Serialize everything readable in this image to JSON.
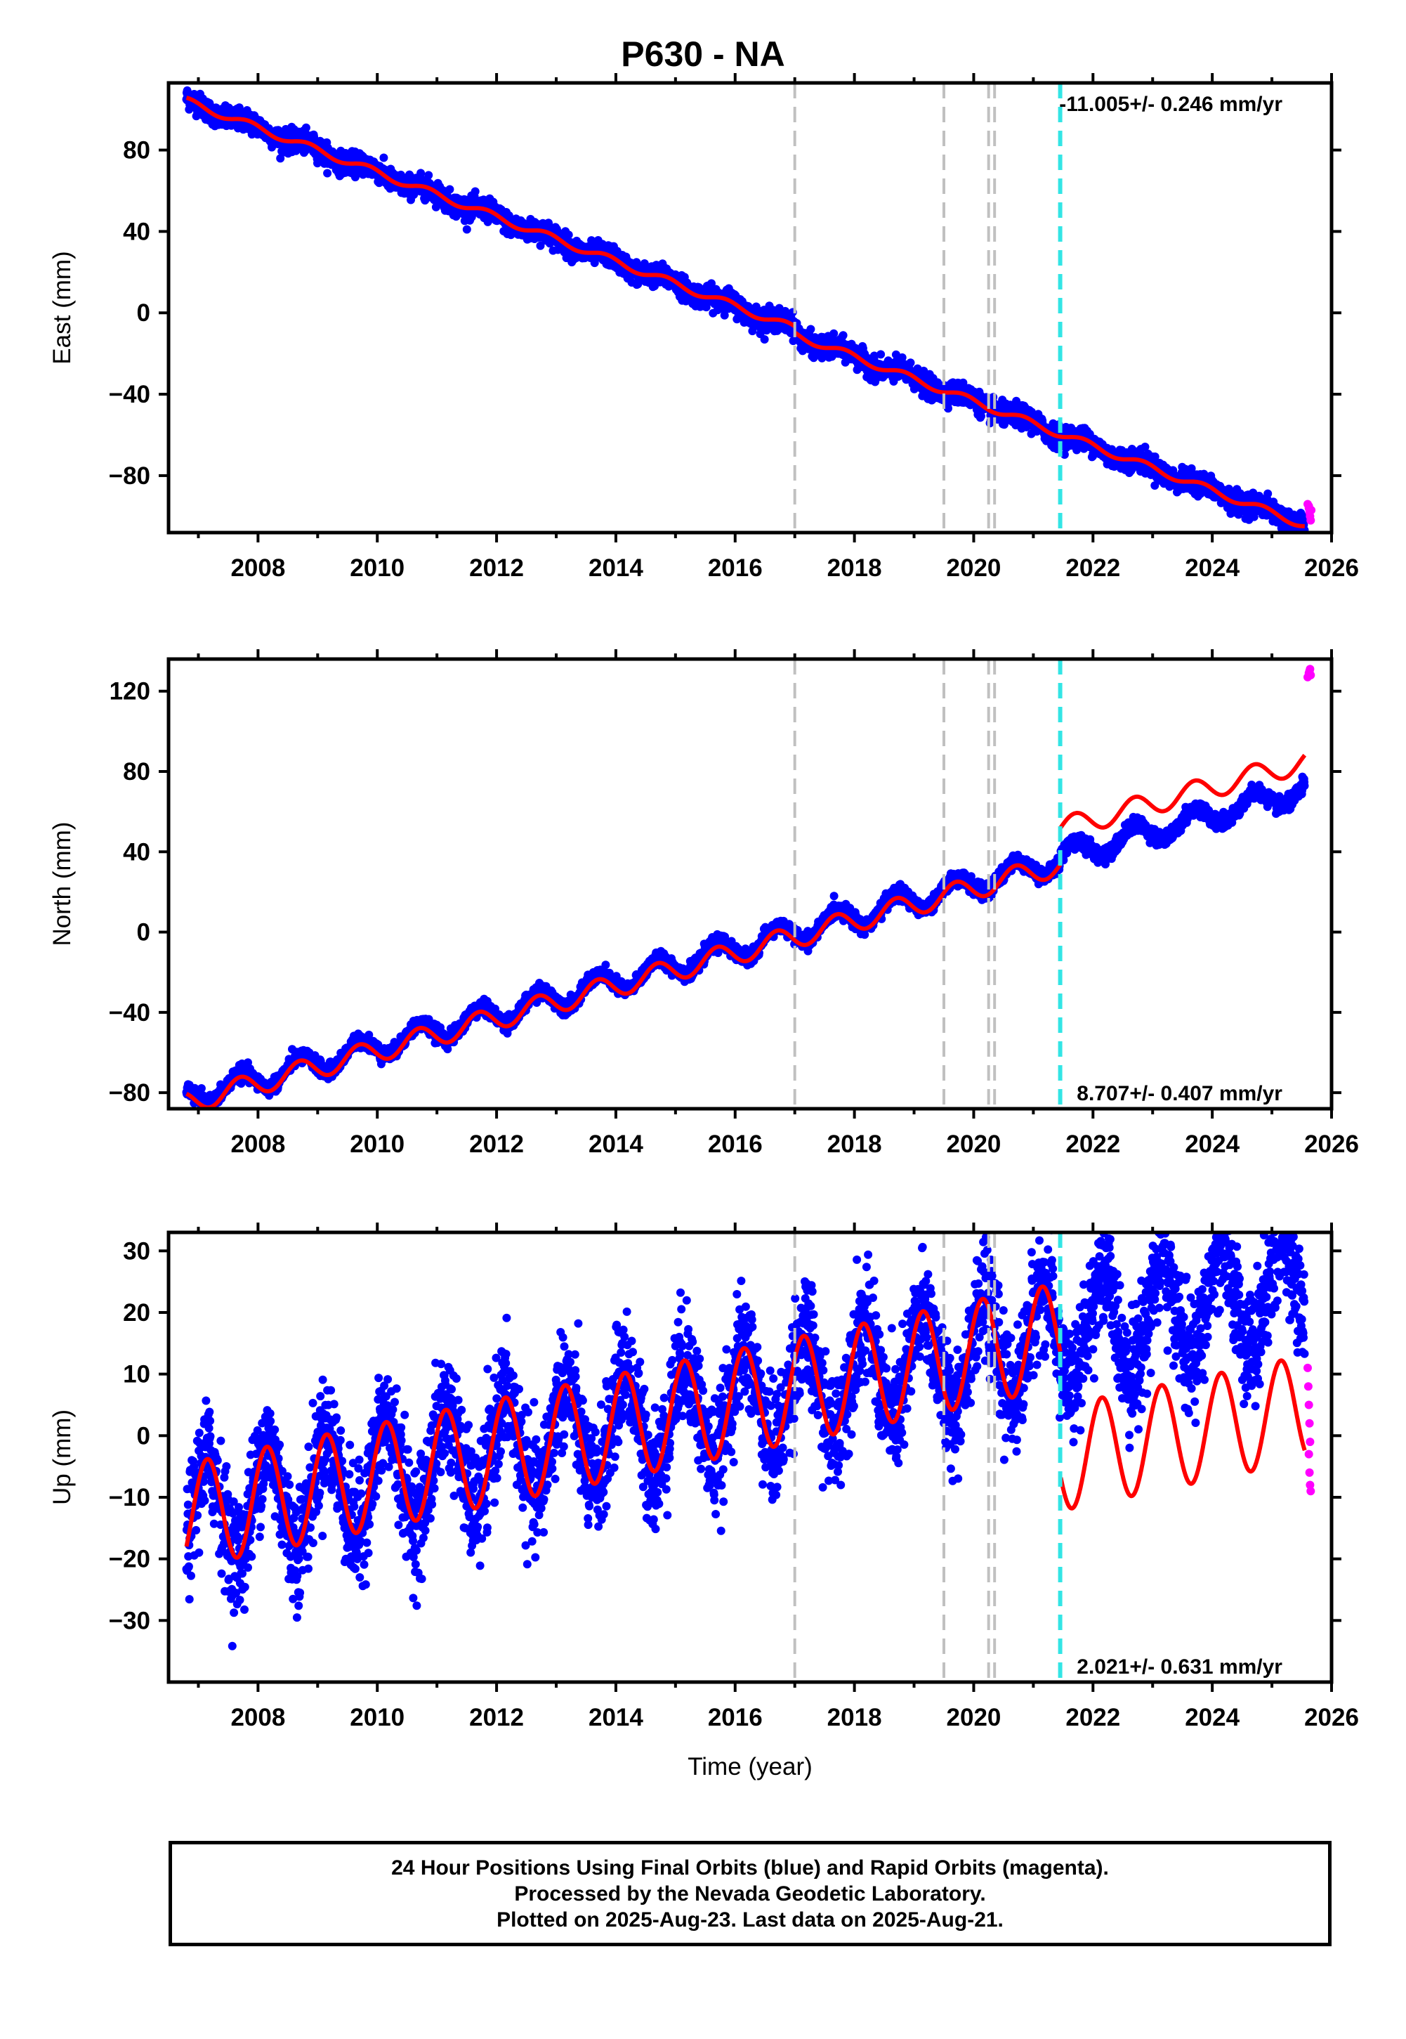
{
  "title": "P630 - NA",
  "colors": {
    "final_orbits": "#0000ff",
    "rapid_orbits": "#ff00ff",
    "model": "#ff0000",
    "event_gray": "#c0c0c0",
    "event_cyan": "#33e5e5"
  },
  "chart_data": [
    {
      "type": "scatter",
      "panel": "east",
      "ylabel": "East (mm)",
      "xlabel": "",
      "xlim": [
        2006.5,
        2026.0
      ],
      "ylim": [
        -108,
        113
      ],
      "yticks": [
        -80,
        -40,
        0,
        40,
        80
      ],
      "xticks": [
        2008,
        2010,
        2012,
        2014,
        2016,
        2018,
        2020,
        2022,
        2024,
        2026
      ],
      "rate_label": "-11.005+/- 0.246 mm/yr",
      "rate_position": "top-right",
      "grid": false,
      "event_lines": [
        {
          "x": 2017.0,
          "color": "gray"
        },
        {
          "x": 2019.5,
          "color": "gray"
        },
        {
          "x": 2020.25,
          "color": "gray"
        },
        {
          "x": 2020.35,
          "color": "gray"
        },
        {
          "x": 2021.45,
          "color": "cyan"
        }
      ],
      "series_params": {
        "start": 2006.8,
        "end": 2025.55,
        "offset": 104,
        "rate": -10.95,
        "annual_amp": 1.8,
        "annual_phase": 0.4,
        "steps": [
          {
            "t": 2017.0,
            "dy": -3.0
          }
        ],
        "noise": 2.6,
        "model_offset": 0
      },
      "rapid_points": [
        {
          "x": 2025.6,
          "y": -94
        },
        {
          "x": 2025.62,
          "y": -96
        },
        {
          "x": 2025.63,
          "y": -98
        },
        {
          "x": 2025.64,
          "y": -100
        },
        {
          "x": 2025.65,
          "y": -102
        },
        {
          "x": 2025.62,
          "y": -95
        },
        {
          "x": 2025.66,
          "y": -97
        }
      ]
    },
    {
      "type": "scatter",
      "panel": "north",
      "ylabel": "North (mm)",
      "xlabel": "",
      "xlim": [
        2006.5,
        2026.0
      ],
      "ylim": [
        -88,
        136
      ],
      "yticks": [
        -80,
        -40,
        0,
        40,
        80,
        120
      ],
      "xticks": [
        2008,
        2010,
        2012,
        2014,
        2016,
        2018,
        2020,
        2022,
        2024,
        2026
      ],
      "rate_label": "8.707+/- 0.407 mm/yr",
      "rate_position": "bottom-right",
      "grid": false,
      "event_lines": [
        {
          "x": 2017.0,
          "color": "gray"
        },
        {
          "x": 2019.5,
          "color": "gray"
        },
        {
          "x": 2020.25,
          "color": "gray"
        },
        {
          "x": 2020.35,
          "color": "gray"
        },
        {
          "x": 2021.45,
          "color": "cyan"
        }
      ],
      "series_params": {
        "start": 2006.8,
        "end": 2025.55,
        "offset": -83,
        "rate": 8.1,
        "annual_amp": 5.5,
        "annual_phase": 0.55,
        "steps": [
          {
            "t": 2021.45,
            "dy": 2.0
          }
        ],
        "noise": 1.8,
        "model_offset": -2.0,
        "model_steps": [
          {
            "t": 2021.45,
            "dy": 16.0
          }
        ]
      },
      "rapid_points": [
        {
          "x": 2025.6,
          "y": 127
        },
        {
          "x": 2025.62,
          "y": 129
        },
        {
          "x": 2025.64,
          "y": 131
        },
        {
          "x": 2025.65,
          "y": 128
        },
        {
          "x": 2025.63,
          "y": 130
        }
      ]
    },
    {
      "type": "scatter",
      "panel": "up",
      "ylabel": "Up (mm)",
      "xlabel": "Time (year)",
      "xlim": [
        2006.5,
        2026.0
      ],
      "ylim": [
        -40,
        33
      ],
      "yticks": [
        -30,
        -20,
        -10,
        0,
        10,
        20,
        30
      ],
      "xticks": [
        2008,
        2010,
        2012,
        2014,
        2016,
        2018,
        2020,
        2022,
        2024,
        2026
      ],
      "rate_label": "2.021+/- 0.631 mm/yr",
      "rate_position": "bottom-right",
      "grid": false,
      "event_lines": [
        {
          "x": 2017.0,
          "color": "gray"
        },
        {
          "x": 2019.5,
          "color": "gray"
        },
        {
          "x": 2020.25,
          "color": "gray"
        },
        {
          "x": 2020.35,
          "color": "gray"
        },
        {
          "x": 2021.45,
          "color": "cyan"
        }
      ],
      "series_params": {
        "start": 2006.8,
        "end": 2025.55,
        "offset": -13,
        "rate": 2.0,
        "annual_amp": 8.5,
        "annual_phase": 0.1,
        "steps": [],
        "noise": 4.6,
        "model_offset": 0,
        "model_steps": [
          {
            "t": 2021.45,
            "dy": -20.0
          }
        ]
      },
      "rapid_points": [
        {
          "x": 2025.6,
          "y": 11
        },
        {
          "x": 2025.61,
          "y": 8
        },
        {
          "x": 2025.62,
          "y": 5
        },
        {
          "x": 2025.63,
          "y": 2
        },
        {
          "x": 2025.64,
          "y": -1
        },
        {
          "x": 2025.62,
          "y": -3
        },
        {
          "x": 2025.63,
          "y": -6
        },
        {
          "x": 2025.64,
          "y": -8
        },
        {
          "x": 2025.65,
          "y": -9
        }
      ]
    }
  ],
  "footer": {
    "line1": "24 Hour Positions Using Final Orbits (blue) and Rapid Orbits (magenta).",
    "line2": "Processed by the Nevada Geodetic Laboratory.",
    "line3": "Plotted on 2025-Aug-23. Last data on 2025-Aug-21."
  }
}
